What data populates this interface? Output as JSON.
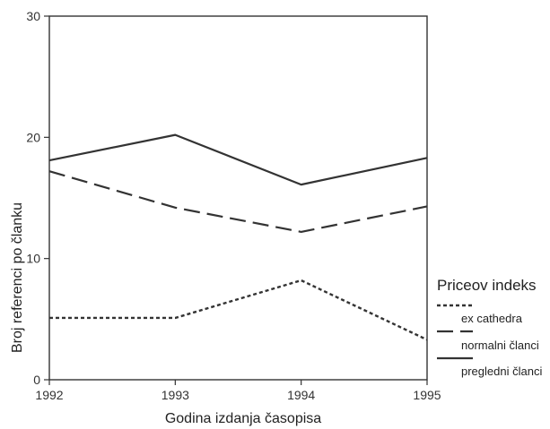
{
  "chart_data": {
    "type": "line",
    "xlabel": "Godina izdanja časopisa",
    "ylabel": "Broj referenci po članku",
    "x": [
      "1992",
      "1993",
      "1994",
      "1995"
    ],
    "xlim": [
      1992,
      1995
    ],
    "ylim": [
      0,
      30
    ],
    "yticks": [
      "0",
      "10",
      "20",
      "30"
    ],
    "grid": false,
    "legend_title": "Priceov indeks",
    "legend_placement": "right",
    "series": [
      {
        "name": "ex cathedra",
        "style": "dotted",
        "color": "#333333",
        "values": [
          5.1,
          5.1,
          8.2,
          3.3
        ]
      },
      {
        "name": "normalni članci",
        "style": "dashed",
        "color": "#333333",
        "values": [
          17.2,
          14.2,
          12.2,
          14.3
        ]
      },
      {
        "name": "pregledni članci",
        "style": "solid",
        "color": "#333333",
        "values": [
          18.1,
          20.2,
          16.1,
          18.3
        ]
      }
    ]
  }
}
